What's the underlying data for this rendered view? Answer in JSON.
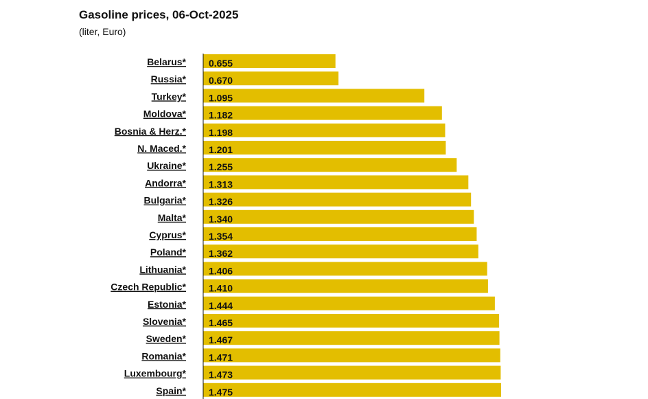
{
  "chart_data": {
    "type": "bar",
    "orientation": "horizontal",
    "title": "Gasoline prices, 06-Oct-2025",
    "subtitle": "(liter, Euro)",
    "categories": [
      "Belarus*",
      "Russia*",
      "Turkey*",
      "Moldova*",
      "Bosnia & Herz.*",
      "N. Maced.*",
      "Ukraine*",
      "Andorra*",
      "Bulgaria*",
      "Malta*",
      "Cyprus*",
      "Poland*",
      "Lithuania*",
      "Czech Republic*",
      "Estonia*",
      "Slovenia*",
      "Sweden*",
      "Romania*",
      "Luxembourg*",
      "Spain*"
    ],
    "values": [
      0.655,
      0.67,
      1.095,
      1.182,
      1.198,
      1.201,
      1.255,
      1.313,
      1.326,
      1.34,
      1.354,
      1.362,
      1.406,
      1.41,
      1.444,
      1.465,
      1.467,
      1.471,
      1.473,
      1.475
    ],
    "value_labels": [
      "0.655",
      "0.670",
      "1.095",
      "1.182",
      "1.198",
      "1.201",
      "1.255",
      "1.313",
      "1.326",
      "1.340",
      "1.354",
      "1.362",
      "1.406",
      "1.410",
      "1.444",
      "1.465",
      "1.467",
      "1.471",
      "1.473",
      "1.475"
    ],
    "xlim": [
      0,
      1.475
    ],
    "grid": false,
    "bar_color": "#E3BE00",
    "axis_color": "#111111"
  }
}
